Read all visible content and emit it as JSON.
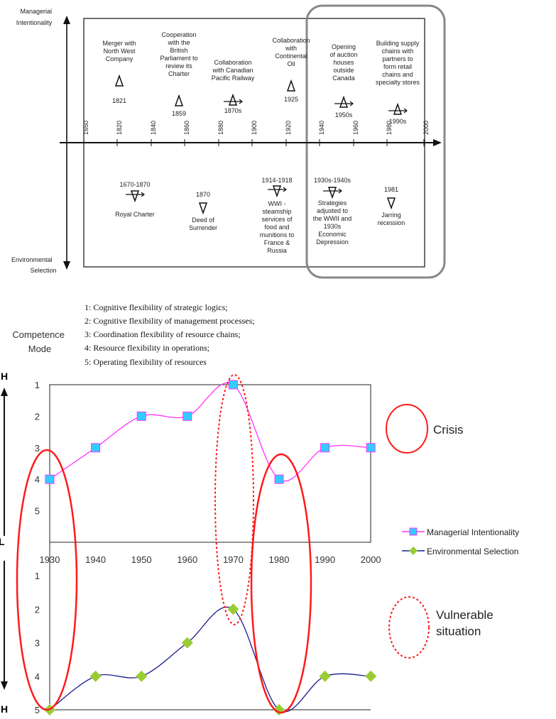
{
  "timeline": {
    "axis_top": "Managerial Intentionality",
    "axis_top_lines": [
      "Managerial",
      "Intentionality"
    ],
    "axis_bottom": "Environmental Selection",
    "axis_bottom_lines": [
      "Environmental",
      "Selection"
    ],
    "years": [
      "1650",
      "1820",
      "1840",
      "1860",
      "1880",
      "1900",
      "1920",
      "1940",
      "1960",
      "1980",
      "2000"
    ],
    "events_above": [
      {
        "lines": [
          "Merger with",
          "North West",
          "Company"
        ],
        "date": "1821",
        "symbol": "delta"
      },
      {
        "lines": [
          "Cooperation",
          "with the",
          "British",
          "Parliament to",
          "review its",
          "Charter"
        ],
        "date": "1859",
        "symbol": "delta"
      },
      {
        "lines": [
          "Collaboration",
          "with Canadian",
          "Pacific Railway"
        ],
        "date": "1870s",
        "symbol": "delta-arrow"
      },
      {
        "lines": [
          "Collaboration",
          "with",
          "Continental",
          "Oil"
        ],
        "date": "1925",
        "symbol": "delta"
      },
      {
        "lines": [
          "Opening",
          "of auction",
          "houses",
          "outside",
          "Canada"
        ],
        "date": "1950s",
        "symbol": "delta-arrow"
      },
      {
        "lines": [
          "Building supply",
          "chains with",
          "partners to",
          "form retail",
          "chains and",
          "specialty stores"
        ],
        "date": "1990s",
        "symbol": "delta-arrow"
      }
    ],
    "events_below": [
      {
        "date": "1670-1870",
        "lines": [
          "Royal Charter"
        ],
        "symbol": "nabla-arrow"
      },
      {
        "date": "1870",
        "lines": [
          "Deed of",
          "Surrender"
        ],
        "symbol": "nabla"
      },
      {
        "date": "1914-1918",
        "lines": [
          "WWI -",
          "steamship",
          "services of",
          "food and",
          "munitions to",
          "France &",
          "Russia"
        ],
        "symbol": "nabla-arrow"
      },
      {
        "date": "1930s-1940s",
        "lines": [
          "Strategies",
          "adjusted to",
          "the WWII and",
          "1930s",
          "Economic",
          "Depression"
        ],
        "symbol": "nabla-arrow"
      },
      {
        "date": "1981",
        "lines": [
          "Jarring",
          "recession"
        ],
        "symbol": "nabla"
      }
    ]
  },
  "legend_notes": [
    "1: Cognitive flexibility of strategic logics;",
    "2: Cognitive flexibility of management processes;",
    "3: Coordination flexibility of resource chains;",
    "4: Resource flexibility in operations;",
    "5: Operating flexibility of resources"
  ],
  "competence_mode": "Competence Mode",
  "competence_mode_lines": [
    "Competence",
    "Mode"
  ],
  "scale_labels": {
    "h_top": "H",
    "l_mid": "L",
    "h_bottom": "H"
  },
  "annotations": {
    "crisis": "Crisis",
    "vulnerable": "Vulnerable situation",
    "vulnerable_lines": [
      "Vulnerable",
      "situation"
    ]
  },
  "colors": {
    "managerial_line": "#ff33ff",
    "managerial_marker": "#33ccff",
    "environmental_line": "#1a1a8c",
    "environmental_marker": "#99cc33",
    "highlight": "#ff1a1a"
  },
  "chart_data": {
    "type": "line",
    "x": [
      1930,
      1940,
      1950,
      1960,
      1970,
      1980,
      1990,
      2000
    ],
    "x_tick_labels": [
      "1930",
      "1940",
      "1950",
      "1960",
      "1970",
      "1980",
      "1990",
      "2000"
    ],
    "y_tick_labels": [
      "1",
      "2",
      "3",
      "4",
      "5"
    ],
    "ylim": [
      1,
      5
    ],
    "y_inverted": true,
    "series": [
      {
        "name": "Managerial Intentionality",
        "values": [
          4,
          3,
          2,
          2,
          1,
          4,
          3,
          3
        ],
        "marker": "square"
      },
      {
        "name": "Environmental Selection",
        "values": [
          5,
          4,
          4,
          3,
          2,
          5,
          4,
          4
        ],
        "marker": "diamond"
      }
    ],
    "legend_position": "right"
  }
}
